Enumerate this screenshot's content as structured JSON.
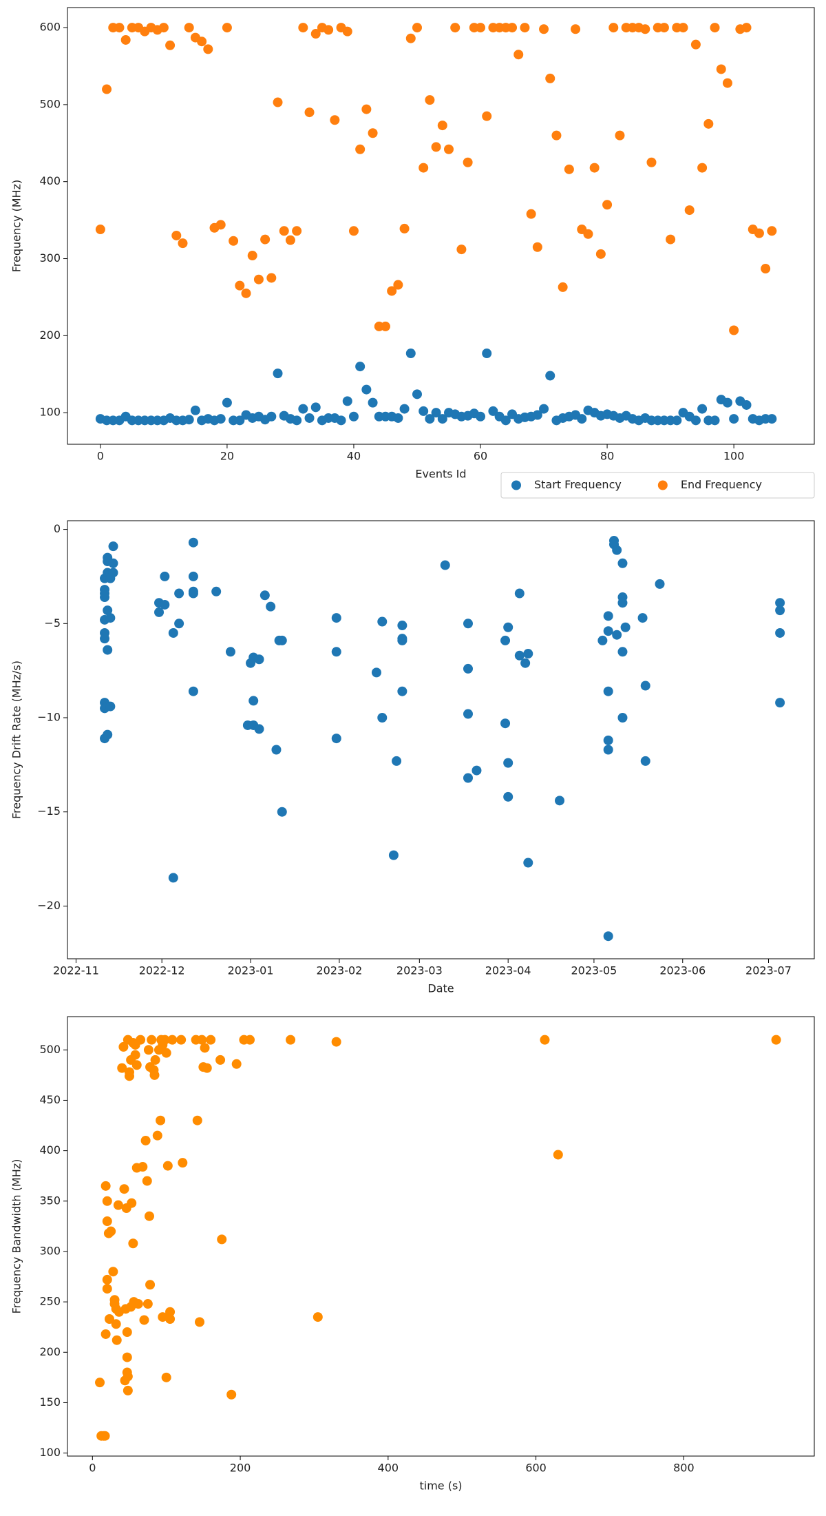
{
  "chart_data": [
    {
      "type": "scatter",
      "xlabel": "Events Id",
      "ylabel": "Frequency  (MHz)",
      "x": [
        0,
        1,
        2,
        3,
        4,
        5,
        6,
        7,
        8,
        9,
        10,
        11,
        12,
        13,
        14,
        15,
        16,
        17,
        18,
        19,
        20,
        21,
        22,
        23,
        24,
        25,
        26,
        27,
        28,
        29,
        30,
        31,
        32,
        33,
        34,
        35,
        36,
        37,
        38,
        39,
        40,
        41,
        42,
        43,
        44,
        45,
        46,
        47,
        48,
        49,
        50,
        51,
        52,
        53,
        54,
        55,
        56,
        57,
        58,
        59,
        60,
        61,
        62,
        63,
        64,
        65,
        66,
        67,
        68,
        69,
        70,
        71,
        72,
        73,
        74,
        75,
        76,
        77,
        78,
        79,
        80,
        81,
        82,
        83,
        84,
        85,
        86,
        87,
        88,
        89,
        90,
        91,
        92,
        93,
        94,
        95,
        96,
        97,
        98,
        99,
        100,
        101,
        102,
        103,
        104,
        105,
        106
      ],
      "series": [
        {
          "name": "Start Frequency",
          "color": "#1f77b4",
          "values": [
            92,
            90,
            90,
            90,
            95,
            90,
            90,
            90,
            90,
            90,
            90,
            93,
            90,
            90,
            91,
            103,
            90,
            92,
            90,
            92,
            113,
            90,
            90,
            97,
            93,
            95,
            91,
            95,
            151,
            96,
            92,
            90,
            105,
            93,
            107,
            90,
            93,
            93,
            90,
            115,
            95,
            160,
            130,
            113,
            95,
            95,
            95,
            93,
            105,
            177,
            124,
            102,
            92,
            100,
            92,
            100,
            98,
            95,
            96,
            99,
            95,
            177,
            102,
            95,
            90,
            98,
            92,
            94,
            95,
            97,
            105,
            148,
            90,
            93,
            95,
            97,
            92,
            103,
            100,
            96,
            98,
            96,
            93,
            96,
            92,
            90,
            93,
            90,
            90,
            90,
            90,
            90,
            100,
            95,
            90,
            105,
            90,
            90,
            117,
            113,
            92,
            115,
            110,
            92,
            90,
            92,
            92
          ]
        },
        {
          "name": "End Frequency",
          "color": "#ff7f0e",
          "values": [
            338,
            520,
            600,
            600,
            584,
            600,
            600,
            595,
            600,
            597,
            600,
            577,
            330,
            320,
            600,
            587,
            582,
            572,
            340,
            344,
            600,
            323,
            265,
            255,
            304,
            273,
            325,
            275,
            503,
            336,
            324,
            336,
            600,
            490,
            592,
            600,
            597,
            480,
            600,
            595,
            336,
            442,
            494,
            463,
            212,
            212,
            258,
            266,
            339,
            586,
            600,
            418,
            506,
            445,
            473,
            442,
            600,
            312,
            425,
            600,
            600,
            485,
            600,
            600,
            600,
            600,
            565,
            600,
            358,
            315,
            598,
            534,
            460,
            263,
            416,
            598,
            338,
            332,
            418,
            306,
            370,
            600,
            460,
            600,
            600,
            600,
            598,
            425,
            600,
            600,
            325,
            600,
            600,
            363,
            578,
            418,
            475,
            600,
            546,
            528,
            207,
            598,
            600,
            338,
            333,
            287,
            336
          ]
        }
      ],
      "xlim": [
        -5.2,
        112.7
      ],
      "ylim": [
        59,
        626
      ],
      "xticks": [
        0,
        20,
        40,
        60,
        80,
        100
      ],
      "yticks": [
        100,
        200,
        300,
        400,
        500,
        600
      ],
      "legend": "lower right"
    },
    {
      "type": "scatter",
      "xlabel": "Date",
      "ylabel": "Frequency Drift Rate (MHz/s)",
      "color": "#1f77b4",
      "x": [
        19307,
        19307,
        19307,
        19307,
        19307,
        19307,
        19307,
        19307,
        19307,
        19307,
        19308,
        19308,
        19308,
        19308,
        19308,
        19308,
        19308,
        19309,
        19309,
        19309,
        19309,
        19310,
        19310,
        19310,
        19326,
        19326,
        19328,
        19328,
        19331,
        19331,
        19333,
        19333,
        19338,
        19338,
        19338,
        19338,
        19338,
        19346,
        19351,
        19357,
        19358,
        19359,
        19359,
        19359,
        19361,
        19361,
        19363,
        19365,
        19367,
        19368,
        19369,
        19369,
        19388,
        19388,
        19388,
        19402,
        19404,
        19404,
        19408,
        19409,
        19411,
        19411,
        19411,
        19411,
        19426,
        19434,
        19434,
        19434,
        19434,
        19437,
        19447,
        19447,
        19448,
        19448,
        19448,
        19452,
        19452,
        19454,
        19455,
        19455,
        19466,
        19481,
        19483,
        19483,
        19483,
        19483,
        19483,
        19483,
        19485,
        19485,
        19486,
        19486,
        19488,
        19488,
        19488,
        19488,
        19488,
        19489,
        19495,
        19496,
        19496,
        19501,
        19543,
        19543,
        19543,
        19543
      ],
      "values": [
        -2.6,
        -3.2,
        -3.6,
        -4.8,
        -5.5,
        -5.8,
        -9.2,
        -9.5,
        -11.1,
        -3.4,
        -1.5,
        -1.7,
        -2.3,
        -4.3,
        -6.4,
        -9.4,
        -10.9,
        -2.4,
        -2.6,
        -4.7,
        -9.4,
        -0.9,
        -1.8,
        -2.3,
        -3.9,
        -4.4,
        -2.5,
        -4.0,
        -5.5,
        -18.5,
        -3.4,
        -5.0,
        -0.7,
        -2.5,
        -3.4,
        -3.3,
        -8.6,
        -3.3,
        -6.5,
        -10.4,
        -7.1,
        -6.8,
        -9.1,
        -10.4,
        -6.9,
        -10.6,
        -3.5,
        -4.1,
        -11.7,
        -5.9,
        -5.9,
        -15.0,
        -4.7,
        -6.5,
        -11.1,
        -7.6,
        -4.9,
        -10.0,
        -17.3,
        -12.3,
        -5.1,
        -5.8,
        -5.9,
        -8.6,
        -1.9,
        -5.0,
        -7.4,
        -9.8,
        -13.2,
        -12.8,
        -5.9,
        -10.3,
        -5.2,
        -12.4,
        -14.2,
        -3.4,
        -6.7,
        -7.1,
        -17.7,
        -6.6,
        -14.4,
        -5.9,
        -11.2,
        -21.6,
        -8.6,
        -11.7,
        -5.4,
        -4.6,
        -0.6,
        -0.8,
        -1.1,
        -5.6,
        -1.8,
        -3.6,
        -3.9,
        -6.5,
        -10.0,
        -5.2,
        -4.7,
        -8.3,
        -12.3,
        -2.9,
        -3.9,
        -4.3,
        -5.5,
        -9.2
      ],
      "xlim": [
        19294,
        19555
      ],
      "ylim": [
        -22.8,
        0.46
      ],
      "xticks": [
        {
          "value": 19297,
          "label": "2022-11"
        },
        {
          "value": 19327,
          "label": "2022-12"
        },
        {
          "value": 19358,
          "label": "2023-01"
        },
        {
          "value": 19389,
          "label": "2023-02"
        },
        {
          "value": 19417,
          "label": "2023-03"
        },
        {
          "value": 19448,
          "label": "2023-04"
        },
        {
          "value": 19478,
          "label": "2023-05"
        },
        {
          "value": 19509,
          "label": "2023-06"
        },
        {
          "value": 19539,
          "label": "2023-07"
        }
      ],
      "yticks": [
        0,
        {
          "value": -5,
          "label": "−5"
        },
        {
          "value": -10,
          "label": "−10"
        },
        {
          "value": -15,
          "label": "−15"
        },
        {
          "value": -20,
          "label": "−20"
        }
      ]
    },
    {
      "type": "scatter",
      "xlabel": "time (s)",
      "ylabel": "Frequency Bandwidth (MHz)",
      "color": "#ff8c00",
      "x": [
        10,
        12,
        15,
        17,
        18,
        18,
        20,
        20,
        20,
        20,
        22,
        23,
        25,
        28,
        30,
        30,
        32,
        32,
        33,
        35,
        36,
        40,
        42,
        43,
        44,
        45,
        46,
        47,
        47,
        47,
        48,
        48,
        48,
        50,
        50,
        52,
        52,
        53,
        55,
        55,
        56,
        58,
        58,
        60,
        60,
        62,
        65,
        68,
        70,
        72,
        74,
        75,
        76,
        77,
        78,
        78,
        80,
        83,
        84,
        85,
        88,
        90,
        92,
        93,
        95,
        95,
        98,
        100,
        100,
        102,
        105,
        105,
        108,
        120,
        122,
        140,
        142,
        145,
        148,
        150,
        152,
        155,
        160,
        173,
        175,
        188,
        195,
        205,
        213,
        268,
        305,
        330,
        612,
        630,
        925
      ],
      "values": [
        170,
        117,
        117,
        117,
        218,
        365,
        272,
        263,
        330,
        350,
        318,
        233,
        320,
        280,
        252,
        248,
        243,
        228,
        212,
        346,
        240,
        482,
        503,
        362,
        172,
        243,
        343,
        220,
        195,
        180,
        176,
        162,
        510,
        474,
        478,
        245,
        490,
        348,
        308,
        507,
        250,
        505,
        495,
        383,
        485,
        248,
        510,
        384,
        232,
        410,
        370,
        248,
        500,
        335,
        267,
        483,
        510,
        480,
        475,
        490,
        415,
        500,
        430,
        510,
        235,
        505,
        510,
        497,
        175,
        385,
        233,
        240,
        510,
        510,
        388,
        510,
        430,
        230,
        510,
        483,
        502,
        482,
        510,
        490,
        312,
        158,
        486,
        510,
        510,
        510,
        235,
        508,
        510,
        396,
        510
      ],
      "xlim": [
        -33.8,
        976.6
      ],
      "ylim": [
        97,
        533
      ],
      "xticks": [
        0,
        200,
        400,
        600,
        800
      ],
      "yticks": [
        100,
        150,
        200,
        250,
        300,
        350,
        400,
        450,
        500
      ]
    }
  ]
}
